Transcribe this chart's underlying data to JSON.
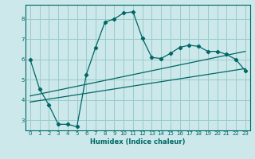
{
  "title": "",
  "xlabel": "Humidex (Indice chaleur)",
  "bg_color": "#cce8ea",
  "grid_color": "#99cccc",
  "line_color": "#006666",
  "xlim": [
    -0.5,
    23.5
  ],
  "ylim": [
    2.5,
    8.7
  ],
  "xticks": [
    0,
    1,
    2,
    3,
    4,
    5,
    6,
    7,
    8,
    9,
    10,
    11,
    12,
    13,
    14,
    15,
    16,
    17,
    18,
    19,
    20,
    21,
    22,
    23
  ],
  "yticks": [
    3,
    4,
    5,
    6,
    7,
    8
  ],
  "curve1_x": [
    0,
    1,
    2,
    3,
    4,
    5,
    6,
    7,
    8,
    9,
    10,
    11,
    12,
    13,
    14,
    15,
    16,
    17,
    18,
    19,
    20,
    21,
    22,
    23
  ],
  "curve1_y": [
    6.0,
    4.55,
    3.75,
    2.8,
    2.8,
    2.68,
    5.25,
    6.6,
    7.85,
    8.0,
    8.3,
    8.35,
    7.05,
    6.1,
    6.05,
    6.3,
    6.6,
    6.7,
    6.65,
    6.4,
    6.4,
    6.25,
    6.0,
    5.45
  ],
  "line2_x": [
    0,
    23
  ],
  "line2_y": [
    3.9,
    5.55
  ],
  "line3_x": [
    0,
    23
  ],
  "line3_y": [
    4.2,
    6.4
  ],
  "tick_fontsize": 5,
  "xlabel_fontsize": 6
}
